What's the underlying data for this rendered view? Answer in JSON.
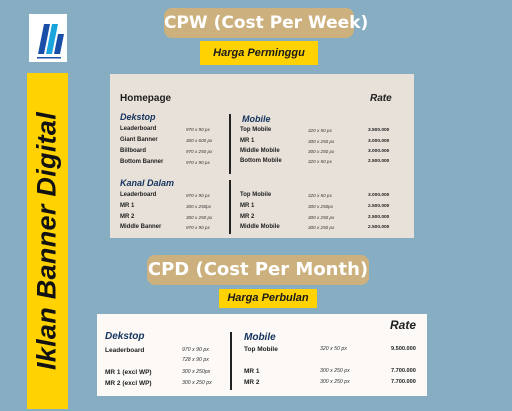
{
  "side_title": "Iklan Banner Digital",
  "logo": {
    "icon": "digital-banner-logo",
    "colors": [
      "#1a4fa8",
      "#1aa4dc"
    ]
  },
  "weekly": {
    "title": "CPW (Cost Per Week)",
    "subtitle": "Harga Perminggu",
    "heading": "Homepage",
    "rate_label": "Rate",
    "desktop_label": "Dekstop",
    "mobile_label": "Mobile",
    "kanal_label": "Kanal Dalam",
    "desktop": [
      {
        "name": "Leaderboard",
        "size": "970 x 90  px"
      },
      {
        "name": "Giant Banner",
        "size": "300 x 600 px"
      },
      {
        "name": "Billboard",
        "size": "970 x 250 px"
      },
      {
        "name": "Bottom Banner",
        "size": "970 x 90 px"
      }
    ],
    "mobile": [
      {
        "name": "Top Mobile",
        "size": "320 x 50 px",
        "price": "3.500.000"
      },
      {
        "name": "MR 1",
        "size": "300 x 250 px",
        "price": "3.000.000"
      },
      {
        "name": "Middle Mobile",
        "size": "300 x 250 px",
        "price": "3.000.000"
      },
      {
        "name": "Bottom Mobile",
        "size": "320 x 50 px",
        "price": "2.500.000"
      }
    ],
    "kanal_desktop": [
      {
        "name": "Leaderboard",
        "size": "970 x 90  px"
      },
      {
        "name": "MR  1",
        "size": "300 x 250px"
      },
      {
        "name": "MR 2",
        "size": "300 x 250 px"
      },
      {
        "name": "Middle Banner",
        "size": "970 x 90 px"
      }
    ],
    "kanal_mobile": [
      {
        "name": "Top Mobile",
        "size": "320 x 50 px",
        "price": "3.000.000"
      },
      {
        "name": "MR 1",
        "size": "300 x 250px",
        "price": "2.500.000"
      },
      {
        "name": "MR 2",
        "size": "300 x 250 px",
        "price": "2.500.000"
      },
      {
        "name": "Middle Mobile",
        "size": "300 x 250 px",
        "price": "2.500.000"
      }
    ]
  },
  "monthly": {
    "title": "CPD (Cost Per Month)",
    "subtitle": "Harga Perbulan",
    "rate_label": "Rate",
    "desktop_label": "Dekstop",
    "mobile_label": "Mobile",
    "desktop": [
      {
        "name": "Leaderboard",
        "size": "970 x 90  px",
        "size2": "728 x 90 px"
      },
      {
        "name": "MR  1 (excl WP)",
        "size": "300 x 250px"
      },
      {
        "name": "MR 2 (excl WP)",
        "size": "300 x 250 px"
      }
    ],
    "mobile": [
      {
        "name": "Top Mobile",
        "size": "320 x 50 px",
        "price": "9.500.000"
      },
      {
        "name": "MR 1",
        "size": "300 x 250 px",
        "price": "7.700.000"
      },
      {
        "name": "MR 2",
        "size": "300 x 250 px",
        "price": "7.700.000"
      }
    ]
  }
}
